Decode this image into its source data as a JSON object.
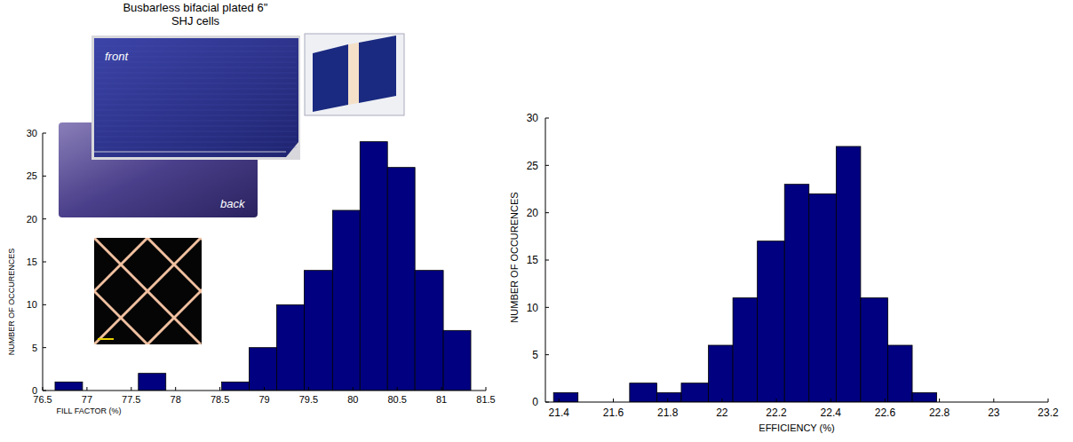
{
  "chart_data": [
    {
      "type": "histogram",
      "annotations": [
        "Busbarless bifacial plated 6'' SHJ cells",
        "front",
        "back"
      ],
      "x_label": "FILL FACTOR (%)",
      "y_label": "NUMBER OF OCCURENCES",
      "bins": [
        76.64,
        76.95,
        77.27,
        77.58,
        77.89,
        78.2,
        78.52,
        78.83,
        79.14,
        79.45,
        79.77,
        80.08,
        80.39,
        80.7,
        81.02,
        81.33
      ],
      "counts": [
        1,
        0,
        0,
        2,
        0,
        0,
        1,
        5,
        10,
        14,
        21,
        29,
        26,
        14,
        7
      ],
      "color": "#000080",
      "xlim": [
        76.5,
        81.5
      ],
      "xticks": [
        76.5,
        77,
        77.5,
        78,
        78.5,
        79,
        79.5,
        80,
        80.5,
        81,
        81.5
      ],
      "ylim": [
        0,
        30
      ],
      "yticks": [
        0,
        5,
        10,
        15,
        20,
        25,
        30
      ]
    },
    {
      "type": "histogram",
      "x_label": "EFFICIENCY (%)",
      "y_label": "NUMBER OF OCCURENCES",
      "bins": [
        21.38,
        21.47,
        21.57,
        21.66,
        21.76,
        21.85,
        21.95,
        22.04,
        22.13,
        22.23,
        22.32,
        22.42,
        22.51,
        22.61,
        22.7,
        22.79
      ],
      "counts": [
        1,
        0,
        0,
        2,
        1,
        2,
        6,
        11,
        17,
        23,
        22,
        27,
        11,
        6,
        1
      ],
      "color": "#000080",
      "xlim": [
        21.35,
        23.2
      ],
      "xticks": [
        21.4,
        21.6,
        21.8,
        22,
        22.2,
        22.4,
        22.6,
        22.8,
        23,
        23.2
      ],
      "ylim": [
        0,
        30
      ],
      "yticks": [
        0,
        5,
        10,
        15,
        20,
        25,
        30
      ]
    }
  ]
}
